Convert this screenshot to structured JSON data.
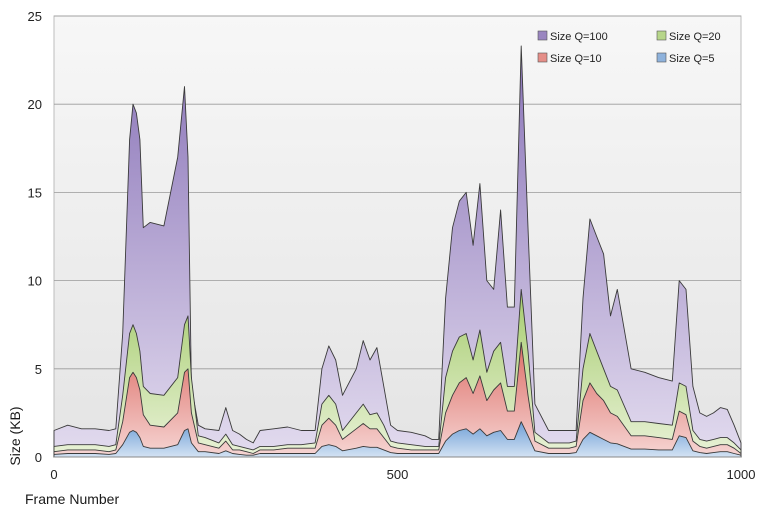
{
  "chart_data": {
    "type": "area",
    "stacked": false,
    "xlabel": "Frame Number",
    "ylabel": "Size (KB)",
    "xlim": [
      0,
      1000
    ],
    "ylim": [
      0,
      25
    ],
    "x_ticks": [
      0,
      500,
      1000
    ],
    "y_ticks": [
      0,
      5,
      10,
      15,
      20,
      25
    ],
    "grid": "horizontal",
    "legend_position": "top-right",
    "x": [
      0,
      20,
      40,
      60,
      80,
      90,
      100,
      110,
      115,
      120,
      125,
      130,
      140,
      160,
      180,
      190,
      195,
      200,
      210,
      220,
      240,
      250,
      260,
      270,
      280,
      290,
      300,
      320,
      340,
      360,
      380,
      390,
      400,
      410,
      420,
      440,
      450,
      460,
      470,
      480,
      490,
      500,
      520,
      540,
      550,
      560,
      570,
      580,
      590,
      600,
      610,
      620,
      630,
      640,
      650,
      660,
      670,
      680,
      690,
      700,
      720,
      740,
      750,
      760,
      770,
      780,
      790,
      800,
      810,
      820,
      840,
      860,
      880,
      900,
      910,
      920,
      930,
      940,
      950,
      960,
      970,
      980,
      990,
      1000
    ],
    "series": [
      {
        "name": "Size Q=100",
        "color": "#9a86c0",
        "values": [
          1.5,
          1.8,
          1.6,
          1.6,
          1.5,
          1.6,
          7.0,
          18.0,
          20.0,
          19.5,
          18.0,
          13.0,
          13.3,
          13.1,
          17.0,
          21.0,
          17.0,
          4.0,
          1.8,
          1.6,
          1.5,
          2.8,
          1.5,
          1.3,
          1.0,
          0.8,
          1.5,
          1.6,
          1.7,
          1.5,
          1.5,
          5.0,
          6.3,
          5.5,
          3.5,
          5.0,
          6.6,
          5.5,
          6.2,
          4.0,
          1.8,
          1.5,
          1.4,
          1.2,
          1.0,
          1.0,
          9.0,
          13.0,
          14.5,
          15.0,
          12.0,
          15.5,
          10.0,
          9.5,
          14.0,
          8.5,
          8.5,
          23.3,
          13.0,
          3.0,
          1.5,
          1.5,
          1.5,
          1.5,
          9.0,
          13.5,
          12.5,
          11.5,
          8.0,
          9.5,
          5.0,
          4.8,
          4.5,
          4.3,
          10.0,
          9.5,
          4.0,
          2.5,
          2.3,
          2.5,
          2.8,
          2.7,
          1.8,
          0.8
        ]
      },
      {
        "name": "Size Q=20",
        "color": "#b7d68a",
        "values": [
          0.6,
          0.7,
          0.7,
          0.7,
          0.6,
          0.7,
          3.5,
          7.0,
          7.5,
          7.0,
          6.0,
          4.0,
          3.6,
          3.5,
          4.5,
          7.5,
          8.0,
          4.5,
          1.2,
          1.1,
          0.8,
          1.3,
          0.7,
          0.6,
          0.5,
          0.4,
          0.6,
          0.6,
          0.7,
          0.7,
          0.8,
          3.0,
          3.5,
          3.0,
          1.5,
          2.5,
          3.0,
          2.4,
          2.5,
          1.8,
          0.9,
          0.8,
          0.7,
          0.6,
          0.6,
          0.6,
          4.5,
          6.0,
          6.8,
          7.0,
          5.5,
          7.2,
          4.8,
          6.0,
          6.5,
          4.0,
          4.0,
          9.5,
          6.0,
          1.4,
          0.8,
          0.8,
          0.8,
          0.9,
          5.0,
          7.0,
          6.0,
          5.0,
          4.0,
          3.8,
          2.0,
          2.0,
          1.9,
          1.8,
          4.2,
          4.0,
          1.5,
          1.0,
          0.9,
          1.0,
          1.1,
          1.1,
          0.8,
          0.4
        ]
      },
      {
        "name": "Size Q=10",
        "color": "#e58e88",
        "values": [
          0.3,
          0.4,
          0.4,
          0.4,
          0.3,
          0.4,
          2.0,
          4.5,
          4.8,
          4.5,
          3.8,
          2.4,
          1.8,
          1.7,
          2.5,
          4.8,
          5.0,
          2.5,
          0.8,
          0.7,
          0.5,
          0.9,
          0.4,
          0.4,
          0.3,
          0.2,
          0.4,
          0.4,
          0.5,
          0.5,
          0.5,
          1.8,
          2.2,
          1.8,
          1.0,
          1.6,
          1.9,
          1.6,
          1.6,
          1.1,
          0.6,
          0.5,
          0.4,
          0.4,
          0.4,
          0.4,
          2.5,
          3.5,
          4.2,
          4.5,
          3.6,
          4.6,
          3.2,
          3.8,
          4.2,
          2.6,
          2.6,
          6.5,
          3.5,
          0.9,
          0.5,
          0.5,
          0.5,
          0.6,
          3.2,
          4.2,
          3.6,
          3.2,
          2.5,
          2.3,
          1.2,
          1.2,
          1.1,
          1.0,
          2.6,
          2.4,
          0.9,
          0.6,
          0.5,
          0.6,
          0.7,
          0.7,
          0.5,
          0.2
        ]
      },
      {
        "name": "Size Q=5",
        "color": "#8eb2dc",
        "values": [
          0.15,
          0.2,
          0.2,
          0.2,
          0.15,
          0.2,
          0.7,
          1.4,
          1.5,
          1.4,
          1.1,
          0.6,
          0.5,
          0.5,
          0.7,
          1.5,
          1.6,
          0.8,
          0.3,
          0.3,
          0.2,
          0.35,
          0.2,
          0.15,
          0.1,
          0.1,
          0.2,
          0.2,
          0.2,
          0.2,
          0.2,
          0.6,
          0.7,
          0.6,
          0.35,
          0.5,
          0.6,
          0.55,
          0.55,
          0.4,
          0.25,
          0.2,
          0.2,
          0.2,
          0.2,
          0.2,
          0.9,
          1.3,
          1.5,
          1.6,
          1.3,
          1.6,
          1.2,
          1.4,
          1.5,
          1.0,
          1.0,
          2.0,
          1.2,
          0.35,
          0.2,
          0.2,
          0.2,
          0.25,
          1.0,
          1.4,
          1.2,
          1.0,
          0.8,
          0.75,
          0.45,
          0.45,
          0.4,
          0.4,
          1.2,
          1.1,
          0.35,
          0.25,
          0.2,
          0.25,
          0.3,
          0.3,
          0.2,
          0.1
        ]
      }
    ],
    "legend": {
      "rows": [
        [
          "Size Q=100",
          "Size Q=20"
        ],
        [
          "Size Q=10",
          "Size Q=5"
        ]
      ]
    }
  }
}
